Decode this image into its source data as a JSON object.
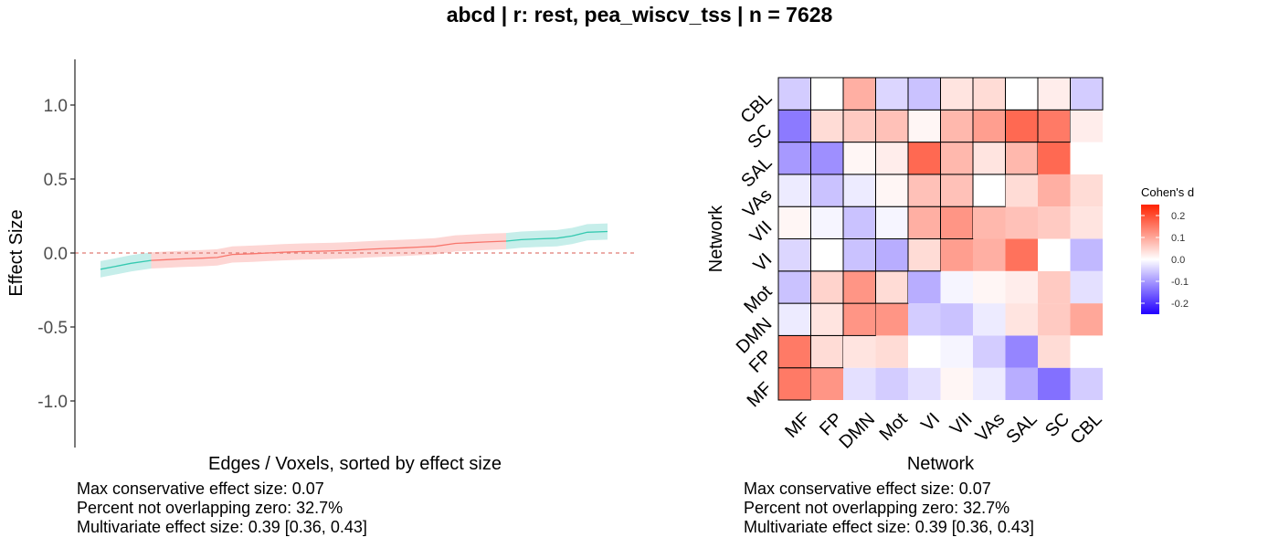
{
  "title": "abcd | r: rest, pea_wiscv_tss | n = 7628",
  "colors": {
    "significant": "#35c9b0",
    "nonsignificant": "#f8766d",
    "ci_significant": "#c6eeea",
    "ci_nonsignificant": "#fdd6d4",
    "zero_line": "#e07b74",
    "heat_low": "#2200ff",
    "heat_mid": "#ffffff",
    "heat_high": "#ff2200"
  },
  "chart_data": [
    {
      "type": "line",
      "xlabel": "Edges / Voxels, sorted by effect size",
      "ylabel": "Effect Size",
      "ylim": [
        -1.3,
        1.3
      ],
      "yticks": [
        1.0,
        0.5,
        0.0,
        -0.5,
        -1.0
      ],
      "yticklabels": [
        "1.0",
        "0.5",
        "0.0",
        "-0.5",
        "-1.0"
      ],
      "x": [
        0,
        0.03,
        0.06,
        0.1,
        0.13,
        0.16,
        0.2,
        0.23,
        0.26,
        0.3,
        0.33,
        0.36,
        0.4,
        0.43,
        0.46,
        0.5,
        0.53,
        0.56,
        0.6,
        0.63,
        0.66,
        0.7,
        0.73,
        0.76,
        0.8,
        0.83,
        0.86,
        0.9,
        0.93,
        0.96,
        1.0
      ],
      "values": [
        -0.11,
        -0.09,
        -0.07,
        -0.05,
        -0.045,
        -0.04,
        -0.035,
        -0.03,
        -0.01,
        -0.005,
        0.0,
        0.005,
        0.01,
        0.012,
        0.015,
        0.02,
        0.025,
        0.03,
        0.035,
        0.04,
        0.045,
        0.065,
        0.07,
        0.075,
        0.08,
        0.09,
        0.095,
        0.1,
        0.115,
        0.14,
        0.145
      ],
      "ci_half_width": 0.055,
      "significant": [
        true,
        true,
        true,
        false,
        false,
        false,
        false,
        false,
        false,
        false,
        false,
        false,
        false,
        false,
        false,
        false,
        false,
        false,
        false,
        false,
        false,
        false,
        false,
        false,
        true,
        true,
        true,
        true,
        true,
        true,
        true
      ],
      "stats": [
        "Max conservative effect size: 0.07",
        "Percent not overlapping zero: 32.7%",
        "Multivariate effect size: 0.39 [0.36, 0.43]"
      ]
    },
    {
      "type": "heatmap",
      "xlabel": "Network",
      "ylabel": "Network",
      "categories": [
        "MF",
        "FP",
        "DMN",
        "Mot",
        "VI",
        "VII",
        "VAs",
        "SAL",
        "SC",
        "CBL"
      ],
      "values": [
        [
          0.15,
          0.12,
          -0.03,
          -0.05,
          -0.03,
          0.01,
          -0.02,
          -0.08,
          -0.14,
          -0.05
        ],
        [
          0.15,
          0.04,
          0.03,
          0.04,
          0.0,
          -0.01,
          -0.05,
          -0.12,
          0.04,
          0.0
        ],
        [
          -0.02,
          0.03,
          0.12,
          0.12,
          -0.05,
          -0.06,
          -0.02,
          0.03,
          0.06,
          0.1
        ],
        [
          -0.06,
          0.05,
          0.12,
          0.04,
          -0.08,
          -0.01,
          0.01,
          0.02,
          0.06,
          -0.03
        ],
        [
          -0.04,
          0.0,
          -0.06,
          -0.08,
          0.04,
          0.11,
          0.09,
          0.16,
          0.0,
          -0.07
        ],
        [
          0.01,
          -0.01,
          -0.06,
          -0.01,
          0.09,
          0.12,
          0.08,
          0.07,
          0.06,
          0.03
        ],
        [
          -0.02,
          -0.06,
          -0.02,
          0.01,
          0.07,
          0.07,
          0.0,
          0.04,
          0.09,
          0.04
        ],
        [
          -0.1,
          -0.11,
          0.01,
          0.02,
          0.17,
          0.08,
          0.03,
          0.08,
          0.17,
          0.0
        ],
        [
          -0.13,
          0.04,
          0.06,
          0.07,
          0.01,
          0.08,
          0.11,
          0.17,
          0.15,
          0.02
        ],
        [
          -0.05,
          0.0,
          0.09,
          -0.04,
          -0.06,
          0.03,
          0.04,
          0.0,
          0.02,
          -0.05
        ]
      ],
      "legend": {
        "title": "Cohen's d",
        "ticks": [
          0.2,
          0.1,
          0.0,
          -0.1,
          -0.2
        ],
        "ticklabels": [
          "0.2",
          "0.1",
          "0.0",
          "-0.1",
          "-0.2"
        ],
        "range": [
          -0.25,
          0.25
        ],
        "placement": "right"
      },
      "stats": [
        "Max conservative effect size: 0.07",
        "Percent not overlapping zero: 32.7%",
        "Multivariate effect size: 0.39 [0.36, 0.43]"
      ]
    }
  ]
}
